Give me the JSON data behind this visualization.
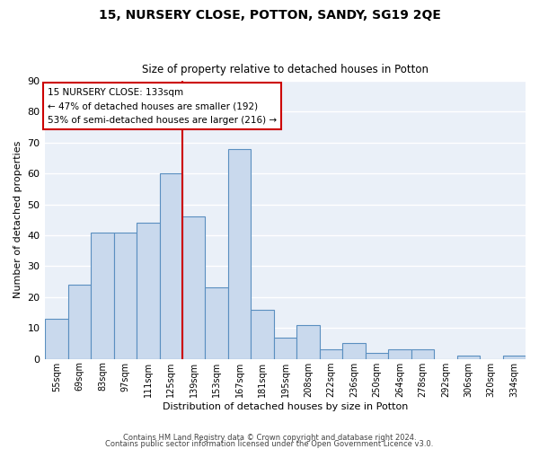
{
  "title": "15, NURSERY CLOSE, POTTON, SANDY, SG19 2QE",
  "subtitle": "Size of property relative to detached houses in Potton",
  "xlabel": "Distribution of detached houses by size in Potton",
  "ylabel": "Number of detached properties",
  "bar_color": "#c9d9ed",
  "bar_edge_color": "#5a8fc0",
  "bg_color": "#eaf0f8",
  "grid_color": "white",
  "categories": [
    "55sqm",
    "69sqm",
    "83sqm",
    "97sqm",
    "111sqm",
    "125sqm",
    "139sqm",
    "153sqm",
    "167sqm",
    "181sqm",
    "195sqm",
    "208sqm",
    "222sqm",
    "236sqm",
    "250sqm",
    "264sqm",
    "278sqm",
    "292sqm",
    "306sqm",
    "320sqm",
    "334sqm"
  ],
  "values": [
    13,
    24,
    41,
    41,
    44,
    60,
    46,
    23,
    68,
    16,
    7,
    11,
    3,
    5,
    2,
    3,
    3,
    0,
    1,
    0,
    1
  ],
  "ylim": [
    0,
    90
  ],
  "yticks": [
    0,
    10,
    20,
    30,
    40,
    50,
    60,
    70,
    80,
    90
  ],
  "property_label": "15 NURSERY CLOSE: 133sqm",
  "annotation_line1": "← 47% of detached houses are smaller (192)",
  "annotation_line2": "53% of semi-detached houses are larger (216) →",
  "vline_bar_index": 5.5,
  "footer1": "Contains HM Land Registry data © Crown copyright and database right 2024.",
  "footer2": "Contains public sector information licensed under the Open Government Licence v3.0.",
  "annotation_box_color": "#ffffff",
  "annotation_box_edge_color": "#cc0000",
  "vline_color": "#cc0000"
}
